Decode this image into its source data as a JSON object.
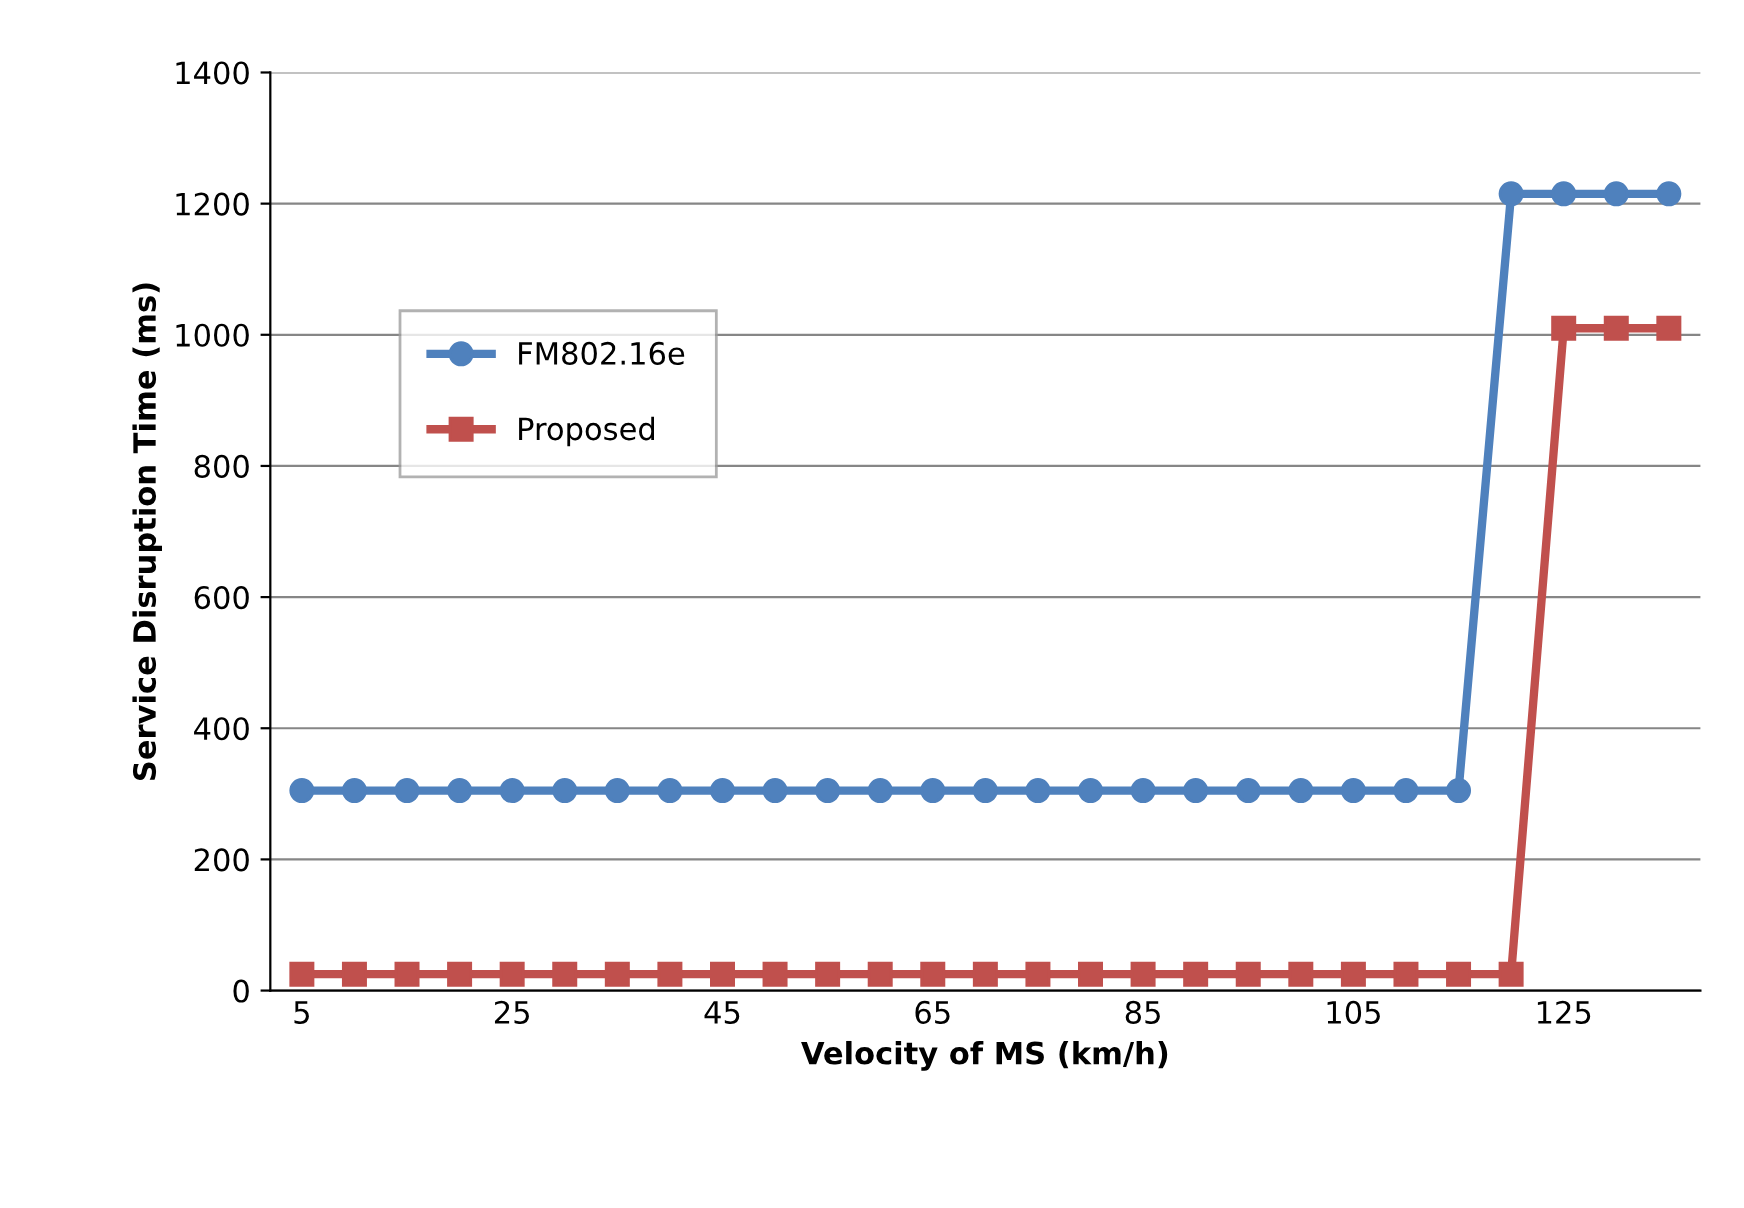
{
  "chart_data": {
    "type": "line",
    "xlabel": "Velocity of MS (km/h)",
    "ylabel": "Service Disruption Time (ms)",
    "categories": [
      "5",
      null,
      null,
      null,
      "25",
      null,
      null,
      null,
      "45",
      null,
      null,
      null,
      "65",
      null,
      null,
      null,
      "85",
      null,
      null,
      null,
      "105",
      null,
      null,
      null,
      "125",
      null,
      null
    ],
    "series": [
      {
        "name": "FM802.16e",
        "color": "#4f81bd",
        "marker": "circle",
        "values": [
          305,
          305,
          305,
          305,
          305,
          305,
          305,
          305,
          305,
          305,
          305,
          305,
          305,
          305,
          305,
          305,
          305,
          305,
          305,
          305,
          305,
          305,
          305,
          1215,
          1215,
          1215,
          1215
        ]
      },
      {
        "name": "Proposed",
        "color": "#c0504d",
        "marker": "square",
        "values": [
          25,
          25,
          25,
          25,
          25,
          25,
          25,
          25,
          25,
          25,
          25,
          25,
          25,
          25,
          25,
          25,
          25,
          25,
          25,
          25,
          25,
          25,
          25,
          25,
          1010,
          1010,
          1010
        ]
      }
    ],
    "ylim": [
      0,
      1400
    ],
    "yticks": [
      0,
      200,
      400,
      600,
      800,
      1000,
      1200,
      1400
    ],
    "grid": "y",
    "legend": "left"
  }
}
